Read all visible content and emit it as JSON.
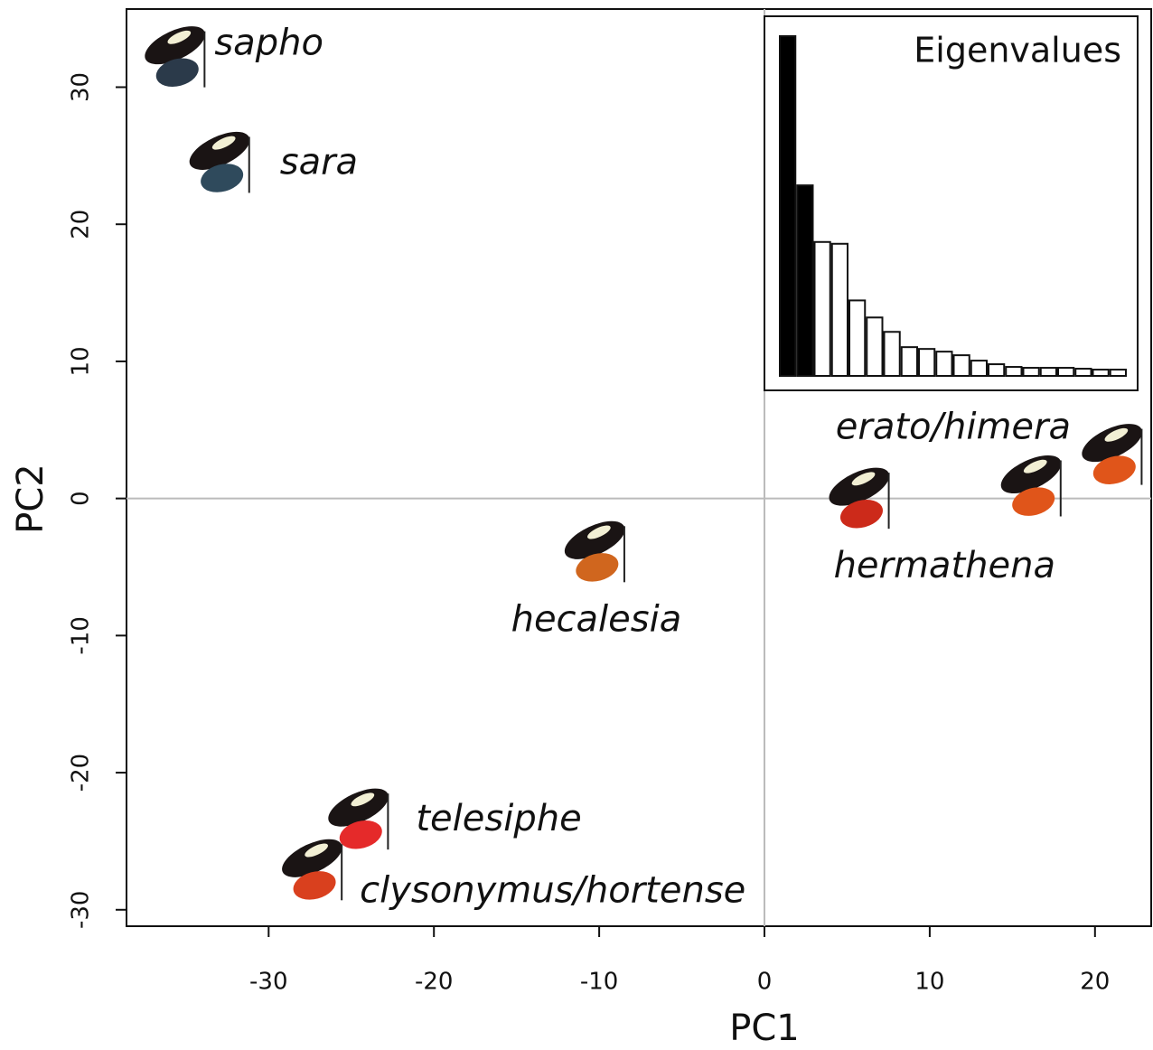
{
  "chart_data": [
    {
      "type": "scatter",
      "xlabel": "PC1",
      "ylabel": "PC2",
      "xlim": [
        -38.6,
        23.4
      ],
      "ylim": [
        -31.2,
        35.7
      ],
      "xticks": [
        -30,
        -20,
        -10,
        0,
        10,
        20
      ],
      "yticks": [
        -30,
        -20,
        -10,
        0,
        10,
        20,
        30
      ],
      "hline": 0,
      "vline": 0,
      "series": [
        {
          "name": "sapho",
          "color": "#2b3a4a",
          "x": [
            -35.3
          ],
          "y": [
            32.1
          ]
        },
        {
          "name": "sara",
          "color": "#2f4a5c",
          "x": [
            -32.6
          ],
          "y": [
            24.4
          ]
        },
        {
          "name": "hecalesia",
          "color": "#d0661e",
          "x": [
            -9.9
          ],
          "y": [
            -4.0
          ]
        },
        {
          "name": "hermathena",
          "color": "#cc2a1a",
          "x": [
            6.1
          ],
          "y": [
            -0.1
          ]
        },
        {
          "name": "erato/himera",
          "color": "#e0551a",
          "x": [
            16.5,
            21.4
          ],
          "y": [
            0.8,
            3.1
          ]
        },
        {
          "name": "telesiphe",
          "color": "#e52a2a",
          "x": [
            -24.2
          ],
          "y": [
            -23.5
          ]
        },
        {
          "name": "clysonymus/hortense",
          "color": "#d9401e",
          "x": [
            -27.0
          ],
          "y": [
            -27.2
          ]
        }
      ]
    },
    {
      "type": "bar",
      "title": "Eigenvalues",
      "ylim": [
        0,
        380
      ],
      "values": [
        378,
        212,
        149,
        147,
        84,
        65,
        49,
        32,
        30,
        27,
        23,
        17,
        13,
        10,
        9,
        9,
        9,
        8,
        7,
        7
      ],
      "colors": [
        "#000000",
        "#000000",
        "#ffffff",
        "#ffffff",
        "#ffffff",
        "#ffffff",
        "#ffffff",
        "#ffffff",
        "#ffffff",
        "#ffffff",
        "#ffffff",
        "#ffffff",
        "#ffffff",
        "#ffffff",
        "#ffffff",
        "#ffffff",
        "#ffffff",
        "#ffffff",
        "#ffffff",
        "#ffffff"
      ]
    }
  ]
}
